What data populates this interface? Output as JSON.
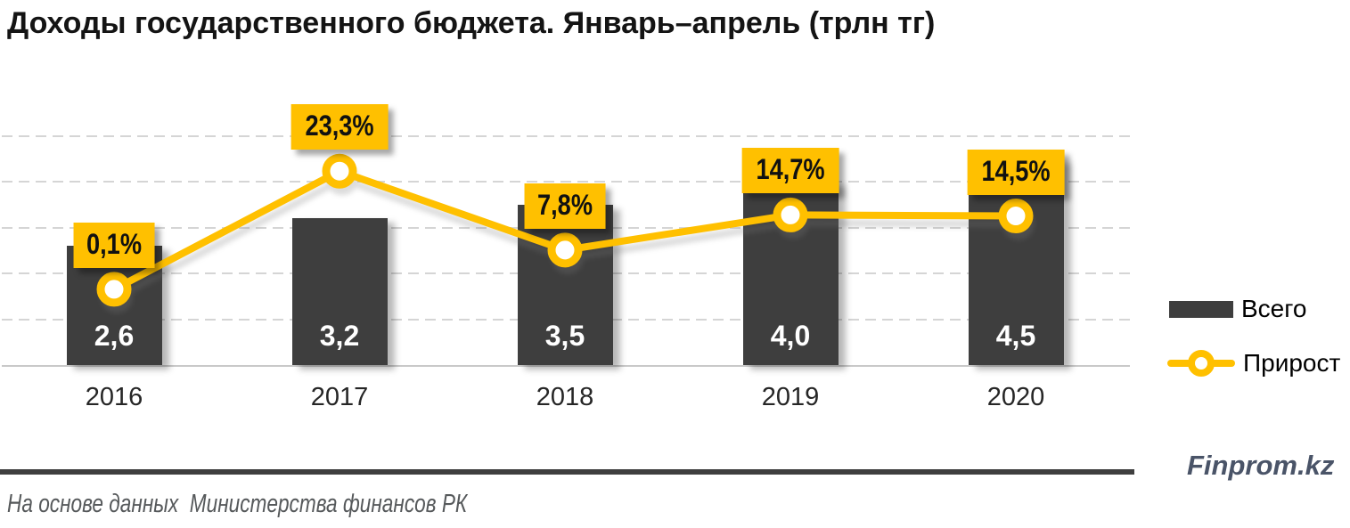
{
  "title": "Доходы государственного бюджета. Январь–апрель (трлн тг)",
  "chart_data": {
    "type": "bar+line",
    "categories": [
      "2016",
      "2017",
      "2018",
      "2019",
      "2020"
    ],
    "series": [
      {
        "name": "Всего",
        "type": "bar",
        "values": [
          2.6,
          3.2,
          3.5,
          4.0,
          4.5
        ],
        "labels": [
          "2,6",
          "3,2",
          "3,5",
          "4,0",
          "4,5"
        ],
        "color": "#3E3E3E"
      },
      {
        "name": "Прирост",
        "type": "line",
        "values": [
          0.1,
          23.3,
          7.8,
          14.7,
          14.5
        ],
        "labels": [
          "0,1%",
          "23,3%",
          "7,8%",
          "14,7%",
          "14,5%"
        ],
        "color": "#FFC000"
      }
    ],
    "ylabel": "",
    "xlabel": "",
    "ylim": [
      0,
      5
    ],
    "y2lim": [
      -15,
      30
    ],
    "grid": "horizontal-dashed",
    "legend_position": "right"
  },
  "legend": {
    "items": [
      {
        "label": "Всего",
        "swatch": "bar"
      },
      {
        "label": "Прирост",
        "swatch": "line"
      }
    ]
  },
  "footer": {
    "source": "На основе данных  Министерства финансов РК",
    "brand": "Finprom.kz"
  }
}
